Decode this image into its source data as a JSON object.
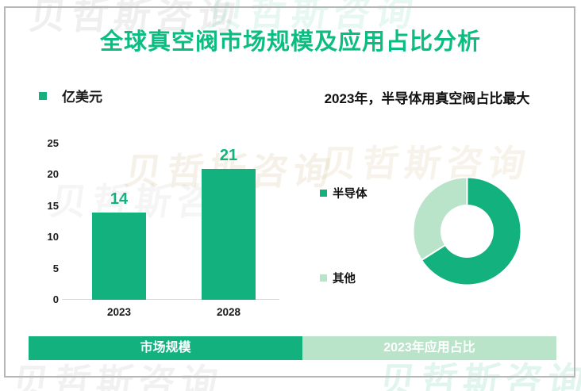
{
  "title": "全球真空阀市场规模及应用占比分析",
  "watermark": {
    "text": "贝哲斯咨询"
  },
  "colors": {
    "accent": "#12b17e",
    "accent_bright": "#0cbd82",
    "light_green": "#b9e4ca",
    "frame_border": "#b6b6b6",
    "axis_line": "#d9d9d9",
    "text": "#1a1a1a"
  },
  "tabs": [
    {
      "label": "市场规模",
      "active": true
    },
    {
      "label": "2023年应用占比",
      "active": false
    }
  ],
  "chart_data": [
    {
      "type": "bar",
      "panel": "left",
      "unit_label": "亿美元",
      "categories": [
        "2023",
        "2028"
      ],
      "values": [
        14,
        21
      ],
      "ylim": [
        0,
        25
      ],
      "yticks": [
        25,
        20,
        15,
        10,
        5,
        0
      ],
      "grid": false,
      "bar_color": "#12b17e",
      "value_label_color": "#12b17e"
    },
    {
      "type": "donut",
      "panel": "right",
      "title": "2023年，半导体用真空阀占比最大",
      "legend_position": "left",
      "series": [
        {
          "name": "半导体",
          "value": 66,
          "color": "#12b17e"
        },
        {
          "name": "其他",
          "value": 34,
          "color": "#b9e4ca"
        }
      ]
    }
  ]
}
